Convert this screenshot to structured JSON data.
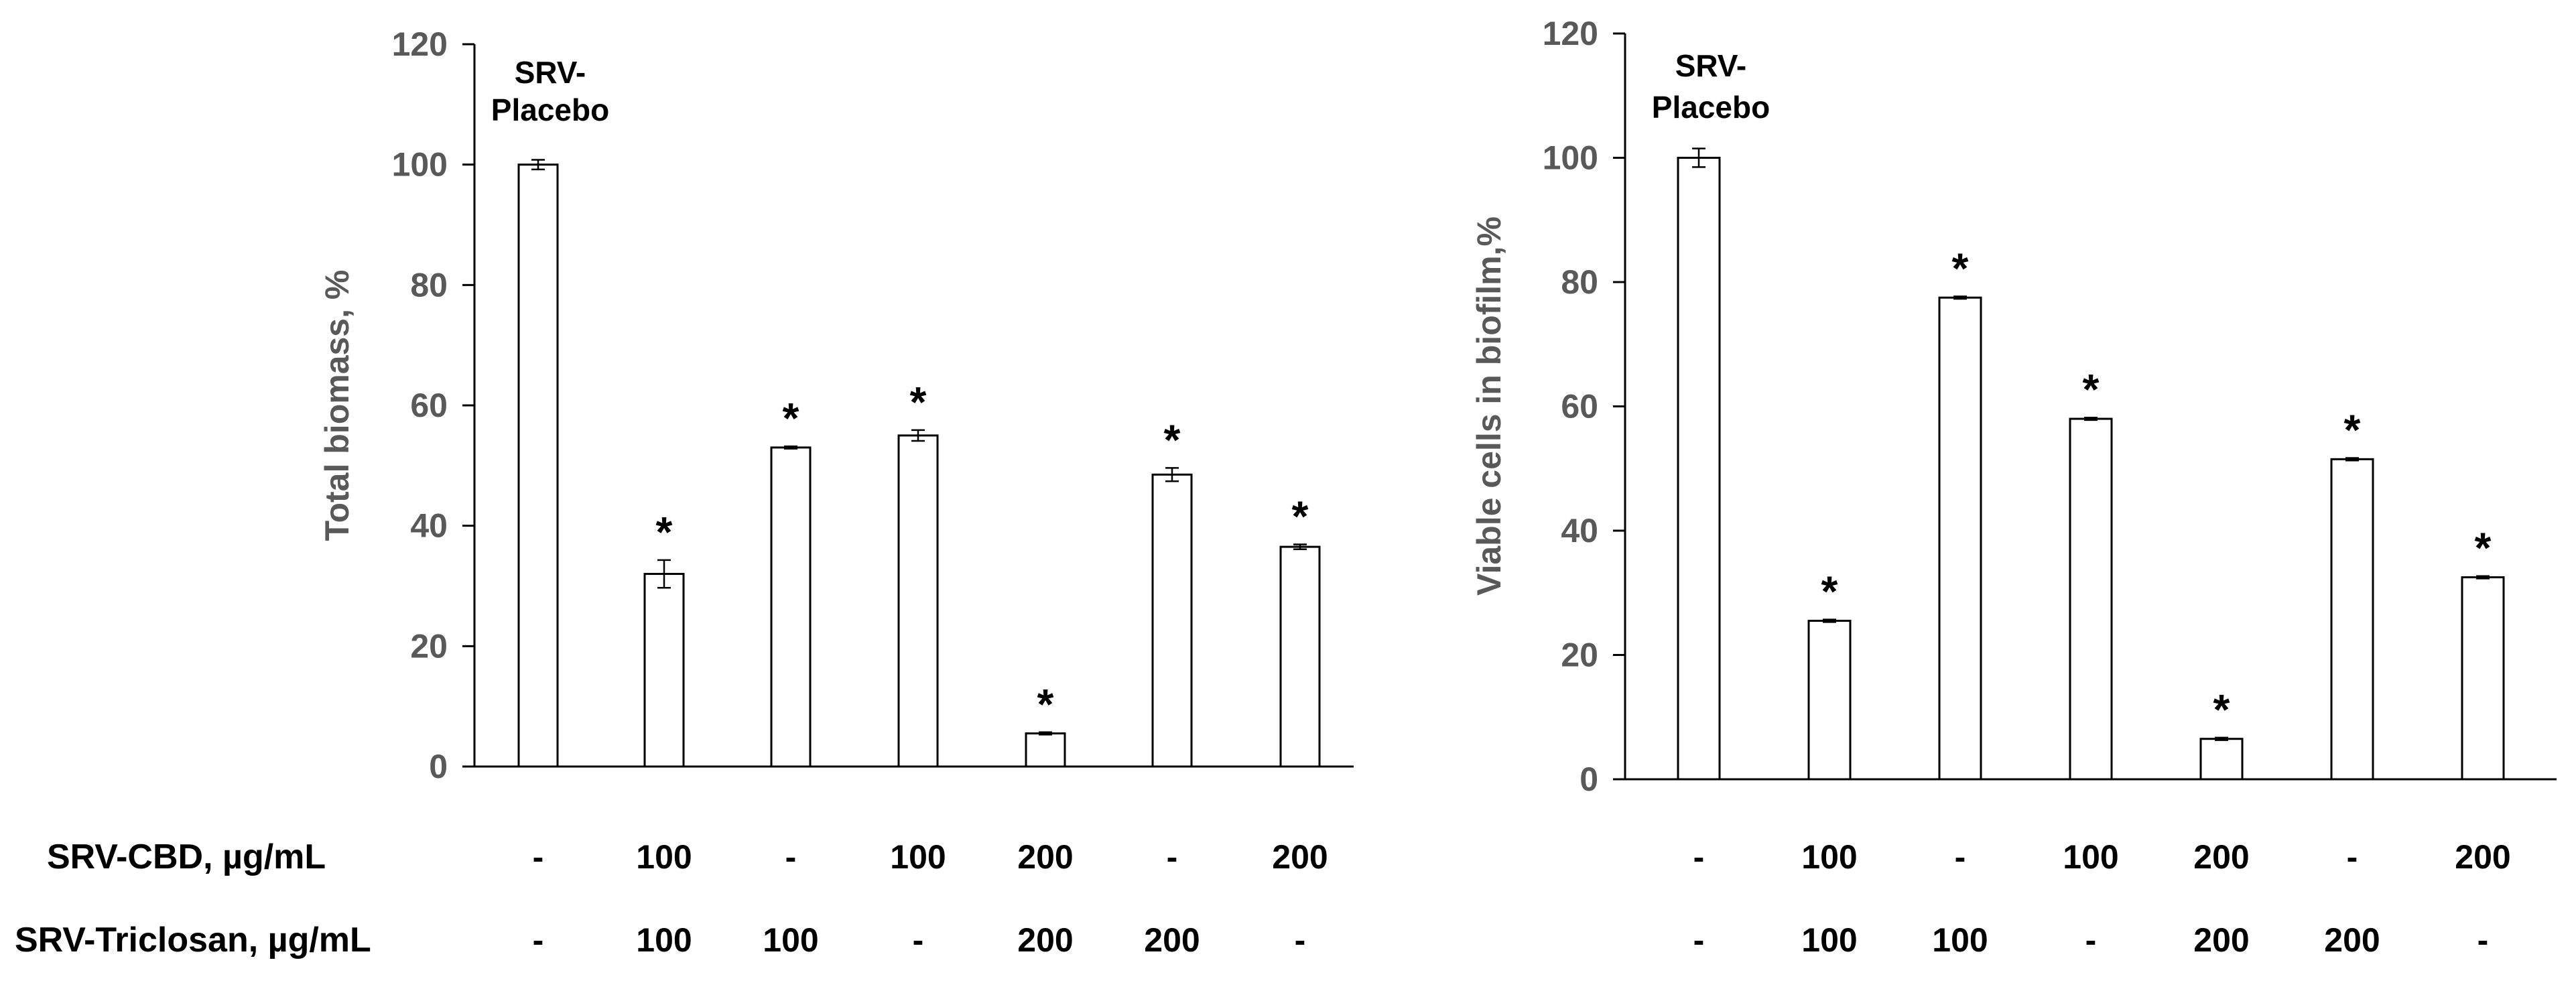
{
  "row_labels": {
    "cbd": "SRV-CBD, µg/mL",
    "triclosan": "SRV-Triclosan, µg/mL"
  },
  "conditions": {
    "cbd": [
      "-",
      "100",
      "-",
      "100",
      "200",
      "-",
      "200"
    ],
    "triclosan": [
      "-",
      "100",
      "100",
      "-",
      "200",
      "200",
      "-"
    ]
  },
  "colors": {
    "axis_text": "#595959",
    "axis_line": "#000000",
    "bar_fill": "#ffffff",
    "bar_stroke": "#000000"
  },
  "chart_data": [
    {
      "type": "bar",
      "title": "",
      "xlabel": "",
      "ylabel": "Total biomass, %",
      "ylim": [
        0,
        120
      ],
      "yticks": [
        0,
        20,
        40,
        60,
        80,
        100,
        120
      ],
      "categories": [
        "SRV-Placebo",
        "CBD 100 + Triclosan 100",
        "Triclosan 100",
        "CBD 100",
        "CBD 200 + Triclosan 200",
        "Triclosan 200",
        "CBD 200"
      ],
      "values": [
        100,
        32,
        53,
        55,
        5.5,
        48.5,
        36.5
      ],
      "errors": [
        0.8,
        2.3,
        0.2,
        0.9,
        0.2,
        1.1,
        0.4
      ],
      "significance": [
        "",
        "*",
        "*",
        "*",
        "*",
        "*",
        "*"
      ],
      "annotation": {
        "bar_index": 0,
        "lines": [
          "SRV-",
          "Placebo"
        ]
      }
    },
    {
      "type": "bar",
      "title": "",
      "xlabel": "",
      "ylabel": "Viable cells in biofilm,%",
      "ylim": [
        0,
        120
      ],
      "yticks": [
        0,
        20,
        40,
        60,
        80,
        100,
        120
      ],
      "categories": [
        "SRV-Placebo",
        "CBD 100 + Triclosan 100",
        "Triclosan 100",
        "CBD 100",
        "CBD 200 + Triclosan 200",
        "Triclosan 200",
        "CBD 200"
      ],
      "values": [
        100,
        25.5,
        77.5,
        58,
        6.5,
        51.5,
        32.5
      ],
      "errors": [
        1.5,
        0.2,
        0.2,
        0.2,
        0.2,
        0.2,
        0.2
      ],
      "significance": [
        "",
        "*",
        "*",
        "*",
        "*",
        "*",
        "*"
      ],
      "annotation": {
        "bar_index": 0,
        "lines": [
          "SRV-",
          "Placebo"
        ]
      }
    }
  ]
}
